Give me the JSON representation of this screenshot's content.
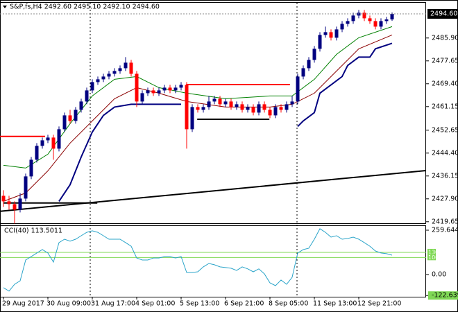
{
  "chart_data": [
    {
      "type": "candlestick",
      "title": "S&P,fs,H4 2492.60 2495.10 2492.10 2494.60",
      "open": [
        2429,
        2427,
        2426,
        2424,
        2428,
        2436,
        2442,
        2447,
        2449,
        2450,
        2446,
        2453,
        2458,
        2456,
        2460,
        2463,
        2467,
        2470,
        2471,
        2472,
        2473,
        2474,
        2475,
        2477,
        2473,
        2463,
        2466,
        2467,
        2466,
        2467,
        2468,
        2467,
        2468,
        2469,
        2453,
        2461,
        2460,
        2461,
        2463,
        2464,
        2462,
        2463,
        2461,
        2462,
        2460,
        2461,
        2459,
        2462,
        2460,
        2458,
        2461,
        2460,
        2462,
        2463,
        2472,
        2475,
        2478,
        2482,
        2487,
        2488,
        2486,
        2489,
        2491,
        2492,
        2494,
        2495,
        2493,
        2492,
        2490,
        2492,
        2492.6
      ],
      "high": [
        2431,
        2429,
        2427,
        2430,
        2437,
        2443,
        2448,
        2450,
        2451,
        2451,
        2454,
        2459,
        2460,
        2461,
        2464,
        2468,
        2471,
        2472,
        2473,
        2474,
        2475,
        2476,
        2479,
        2478,
        2474,
        2467,
        2468,
        2468,
        2468,
        2469,
        2469,
        2469,
        2470,
        2470,
        2462,
        2462,
        2462,
        2465,
        2465,
        2465,
        2464,
        2464,
        2463,
        2463,
        2462,
        2462,
        2463,
        2463,
        2461,
        2462,
        2462,
        2463,
        2465,
        2473,
        2476,
        2479,
        2483,
        2488,
        2490,
        2489,
        2490,
        2492,
        2493,
        2495,
        2496,
        2496,
        2494,
        2493,
        2493,
        2493.5,
        2495.1
      ],
      "low": [
        2425,
        2424,
        2419,
        2423,
        2427,
        2435,
        2441,
        2446,
        2448,
        2442,
        2445,
        2452,
        2455,
        2455,
        2459,
        2462,
        2466,
        2469,
        2470,
        2471,
        2472,
        2473,
        2474,
        2472,
        2461,
        2462,
        2465,
        2465,
        2465,
        2466,
        2466,
        2466,
        2467,
        2446,
        2452,
        2459,
        2459,
        2460,
        2462,
        2461,
        2461,
        2460,
        2460,
        2459,
        2459,
        2458,
        2458,
        2459,
        2457,
        2457,
        2459,
        2459,
        2461,
        2462,
        2471,
        2474,
        2477,
        2481,
        2486,
        2485,
        2485,
        2488,
        2490,
        2491,
        2493,
        2492,
        2491,
        2489,
        2489,
        2491,
        2492.1
      ],
      "close": [
        2427,
        2426,
        2424,
        2428,
        2436,
        2442,
        2447,
        2449,
        2450,
        2446,
        2453,
        2458,
        2456,
        2460,
        2463,
        2467,
        2470,
        2471,
        2472,
        2473,
        2474,
        2475,
        2477,
        2473,
        2463,
        2466,
        2467,
        2466,
        2467,
        2468,
        2467,
        2468,
        2469,
        2453,
        2461,
        2460,
        2461,
        2463,
        2464,
        2462,
        2463,
        2461,
        2462,
        2460,
        2461,
        2459,
        2462,
        2460,
        2458,
        2461,
        2460,
        2462,
        2463,
        2472,
        2475,
        2478,
        2482,
        2487,
        2488,
        2486,
        2489,
        2491,
        2492,
        2494,
        2495,
        2493,
        2492,
        2490,
        2492,
        2492.6,
        2494.6
      ],
      "up_color": "#000080",
      "down_color": "#ff0000",
      "xlim": [
        -0.625,
        76.125
      ],
      "xticks": [
        {
          "value": 0,
          "label": "29 Aug 2017"
        },
        {
          "value": 8,
          "label": "30 Aug 09:00"
        },
        {
          "value": 16,
          "label": "31 Aug 17:00"
        },
        {
          "value": 24,
          "label": "4 Sep 01:00"
        },
        {
          "value": 32,
          "label": "5 Sep 13:00"
        },
        {
          "value": 40,
          "label": "6 Sep 21:00"
        },
        {
          "value": 48,
          "label": "8 Sep 05:00"
        },
        {
          "value": 56,
          "label": "11 Sep 13:00"
        },
        {
          "value": 64,
          "label": "12 Sep 21:00"
        }
      ],
      "ylim": [
        2419.1,
        2498.6
      ],
      "yticks": [
        {
          "value": 2485.9,
          "label": "2485.90"
        },
        2477.65,
        {
          "value": 2469.4,
          "label": "2469.40"
        },
        2461.15,
        2452.65,
        {
          "value": 2444.4,
          "label": "2444.40"
        },
        2436.15,
        {
          "value": 2427.9,
          "label": "2427.90"
        },
        2419.65
      ],
      "price_label": {
        "value": 2494.6,
        "label": "2494.60"
      },
      "overlays": [
        {
          "color": "#008000",
          "width": 1,
          "x": [
            0,
            4,
            8,
            12,
            16,
            20,
            24,
            28,
            33,
            40,
            48,
            52,
            56,
            60,
            64,
            70
          ],
          "values": [
            2440,
            2439,
            2444,
            2455,
            2465,
            2471,
            2472,
            2468,
            2466,
            2464,
            2465,
            2465,
            2471,
            2480,
            2486,
            2490
          ]
        },
        {
          "color": "#8b0000",
          "width": 1,
          "x": [
            0,
            4,
            8,
            12,
            16,
            20,
            24,
            28,
            33,
            40,
            48,
            52,
            56,
            60,
            64,
            70
          ],
          "values": [
            2427,
            2430,
            2438,
            2448,
            2456,
            2464,
            2468,
            2466,
            2463,
            2461,
            2461,
            2462,
            2466,
            2474,
            2482,
            2487
          ]
        },
        {
          "color": "#000080",
          "width": 2,
          "x": [
            10,
            12,
            14,
            16,
            18,
            20,
            23,
            24,
            32,
            33,
            53,
            54,
            56,
            57,
            59,
            61,
            62,
            64,
            66,
            67,
            70
          ],
          "values": [
            2427,
            2433,
            2443,
            2452,
            2458,
            2461,
            2462,
            2462,
            2462,
            null,
            2454,
            2456,
            2459,
            2466,
            2469,
            2472,
            2476,
            2479,
            2479,
            2482,
            2484
          ]
        }
      ],
      "lines": [
        {
          "color": "#000000",
          "x": [
            -0.625,
            76.125
          ],
          "y": [
            2423.4,
            2438.1
          ]
        },
        {
          "color": "#000000",
          "x": [
            0,
            16.9
          ],
          "y": [
            2426.4,
            2426.4
          ]
        },
        {
          "color": "#ff0000",
          "x": [
            -0.625,
            7.5
          ],
          "y": [
            2450.4,
            2450.4
          ]
        },
        {
          "color": "#ff0000",
          "x": [
            32.9,
            51.6
          ],
          "y": [
            2469.1,
            2469.1
          ]
        },
        {
          "color": "#000000",
          "x": [
            34.9,
            47.9
          ],
          "y": [
            2456.6,
            2456.6
          ]
        }
      ]
    },
    {
      "type": "line",
      "title": "CCI(40) 113.5011",
      "color": "#2aa4c9",
      "values": [
        -77,
        -97,
        -57,
        -37,
        85,
        105,
        126,
        146,
        126,
        73,
        187,
        207,
        195,
        207,
        227,
        247,
        256,
        247,
        227,
        207,
        207,
        207,
        187,
        166,
        97,
        85,
        85,
        97,
        97,
        105,
        105,
        97,
        105,
        12,
        12,
        16,
        45,
        65,
        57,
        45,
        41,
        37,
        24,
        45,
        33,
        16,
        33,
        4,
        -49,
        -65,
        -32,
        -57,
        -16,
        126,
        146,
        154,
        207,
        268,
        247,
        219,
        227,
        207,
        211,
        219,
        207,
        187,
        166,
        138,
        126,
        122,
        113.5011
      ],
      "ylim": [
        -130,
        284
      ],
      "yticks": [
        259.6446,
        {
          "value": 0,
          "label": "0.00"
        },
        -122.6397
      ],
      "levels": [
        130,
        100
      ],
      "level_color": "#7fd855"
    }
  ]
}
